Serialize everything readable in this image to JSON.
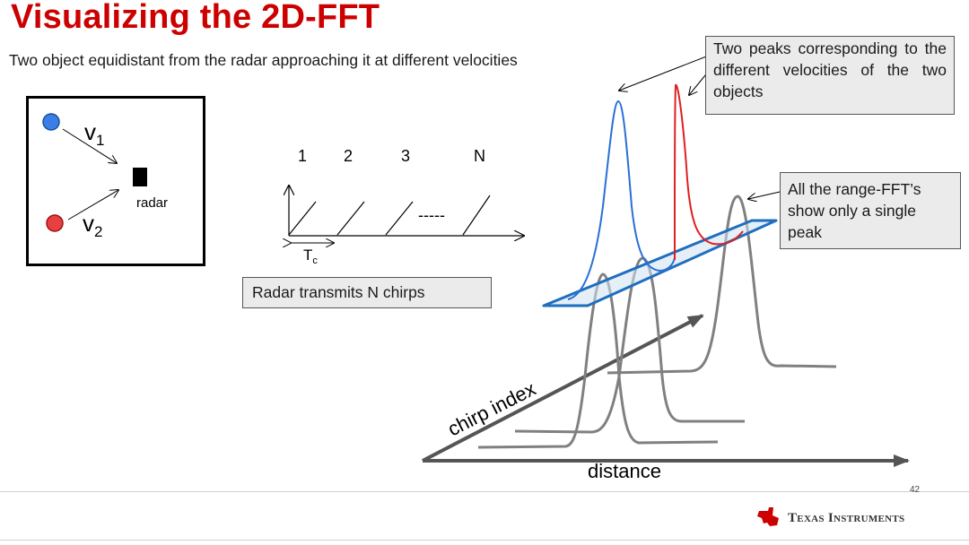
{
  "title": "Visualizing the 2D-FFT",
  "subtitle": "Two object equidistant from the radar approaching it at different velocities",
  "scene": {
    "v1_base": "v",
    "v1_sub": "1",
    "v2_base": "v",
    "v2_sub": "2",
    "radar_label": "radar",
    "object1_color": "#3b7fe6",
    "object2_color": "#e03030"
  },
  "chirps": {
    "labels": [
      "1",
      "2",
      "3",
      "N"
    ],
    "dashes": "-----",
    "tc_base": "T",
    "tc_sub": "c"
  },
  "radar_tx_label": "Radar transmits N chirps",
  "callouts": {
    "velocity": "Two peaks corresponding to the different velocities of the two objects",
    "range": "All the range-FFT’s show only a single peak"
  },
  "axes": {
    "chirp_index_label": "chirp index",
    "distance_label": "distance"
  },
  "colors": {
    "title": "#cc0000",
    "blue_peak": "#2a6fd6",
    "red_peak": "#e02020",
    "range_fft": "#808080",
    "axis": "#555555"
  },
  "footer": {
    "page_number": "42",
    "brand": "Texas Instruments"
  }
}
